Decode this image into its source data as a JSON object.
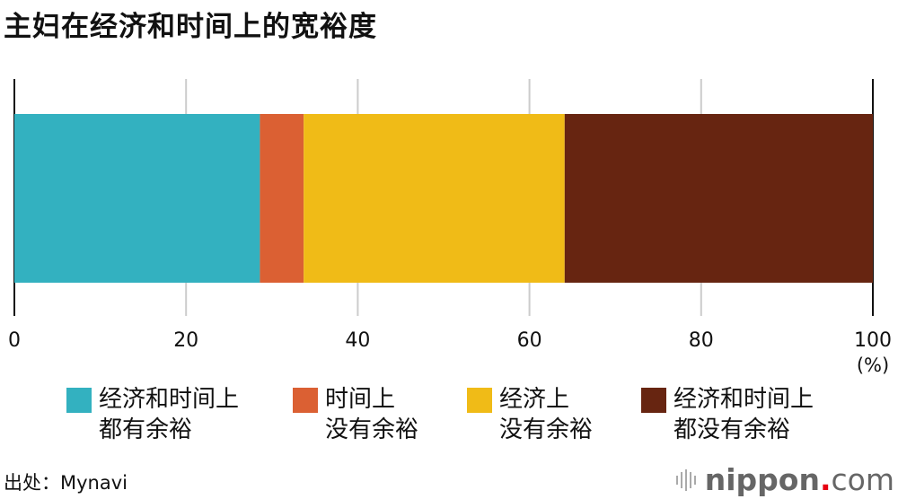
{
  "title": "主妇在经济和时间上的宽裕度",
  "chart_data": {
    "type": "bar",
    "orientation": "horizontal-stacked",
    "title": "主妇在经济和时间上的宽裕度",
    "xlabel": "(%)",
    "xlim": [
      0,
      100
    ],
    "xticks": [
      "0",
      "20",
      "40",
      "60",
      "80",
      "100"
    ],
    "grid": true,
    "legend_position": "bottom",
    "series": [
      {
        "name": "经济和时间上\n都有余裕",
        "value": 28.6,
        "color": "#33b1c0"
      },
      {
        "name": "时间上\n没有余裕",
        "value": 5.1,
        "color": "#db6033"
      },
      {
        "name": "经济上\n没有余裕",
        "value": 30.4,
        "color": "#f0bb17"
      },
      {
        "name": "经济和时间上\n都没有余裕",
        "value": 35.9,
        "color": "#672511"
      }
    ]
  },
  "source": "出处：Mynavi",
  "logo": {
    "name": "nippon",
    "dot": ".",
    "suffix": "com"
  }
}
